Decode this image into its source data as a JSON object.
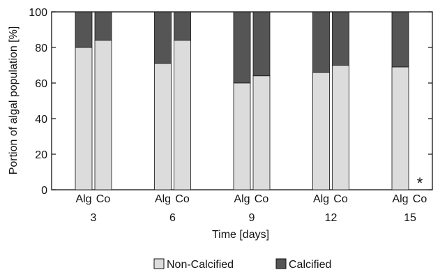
{
  "chart_data": {
    "type": "bar",
    "stacked": true,
    "xlabel": "Time [days]",
    "ylabel": "Portion of algal population [%]",
    "ylim": [
      0,
      100
    ],
    "yticks": [
      "0",
      "20",
      "40",
      "60",
      "80",
      "100"
    ],
    "groups": [
      {
        "day": "3",
        "bars": [
          {
            "label": "Alg",
            "non_calcified": 80
          },
          {
            "label": "Co",
            "non_calcified": 84
          }
        ]
      },
      {
        "day": "6",
        "bars": [
          {
            "label": "Alg",
            "non_calcified": 71
          },
          {
            "label": "Co",
            "non_calcified": 84
          }
        ]
      },
      {
        "day": "9",
        "bars": [
          {
            "label": "Alg",
            "non_calcified": 60
          },
          {
            "label": "Co",
            "non_calcified": 64
          }
        ]
      },
      {
        "day": "12",
        "bars": [
          {
            "label": "Alg",
            "non_calcified": 66
          },
          {
            "label": "Co",
            "non_calcified": 70
          }
        ]
      },
      {
        "day": "15",
        "bars": [
          {
            "label": "Alg",
            "non_calcified": 69
          },
          {
            "label": "Co",
            "non_calcified": null,
            "annotation": "*"
          }
        ]
      }
    ],
    "series": [
      {
        "name": "Non-Calcified",
        "color": "#dcdcdc"
      },
      {
        "name": "Calcified",
        "color": "#555555"
      }
    ],
    "legend_position": "bottom-center",
    "grid": false
  }
}
